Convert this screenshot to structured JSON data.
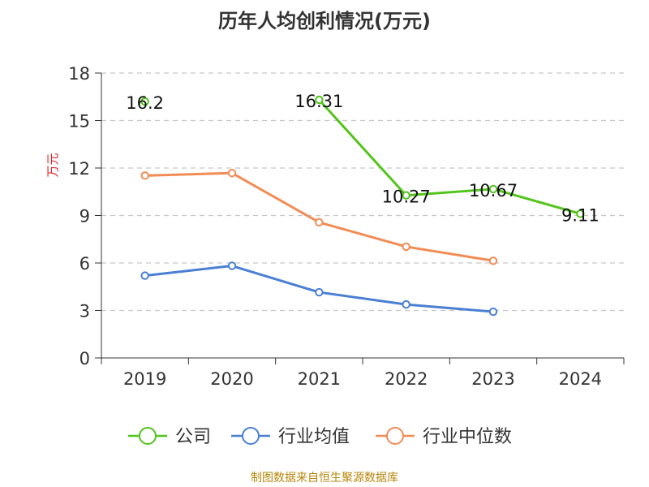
{
  "chart_data": {
    "type": "line",
    "title": "历年人均创利情况(万元)",
    "ylabel": "万元",
    "xlabel": "",
    "categories": [
      "2019",
      "2020",
      "2021",
      "2022",
      "2023",
      "2024"
    ],
    "ylim": [
      0,
      18
    ],
    "yticks": [
      0,
      3,
      6,
      9,
      12,
      15,
      18
    ],
    "grid": true,
    "legend_position": "bottom",
    "series": [
      {
        "name": "公司",
        "color": "#52c41a",
        "values": [
          16.2,
          null,
          16.31,
          10.27,
          10.67,
          9.11
        ],
        "labels": [
          "16.2",
          "",
          "16.31",
          "10.27",
          "10.67",
          "9.11"
        ]
      },
      {
        "name": "行业均值",
        "color": "#4a7fd4",
        "values": [
          5.2,
          5.82,
          4.15,
          3.38,
          2.92,
          null
        ]
      },
      {
        "name": "行业中位数",
        "color": "#f28c55",
        "values": [
          11.52,
          11.68,
          8.57,
          7.03,
          6.14,
          null
        ]
      }
    ]
  },
  "footer": {
    "source": "制图数据来自恒生聚源数据库"
  }
}
